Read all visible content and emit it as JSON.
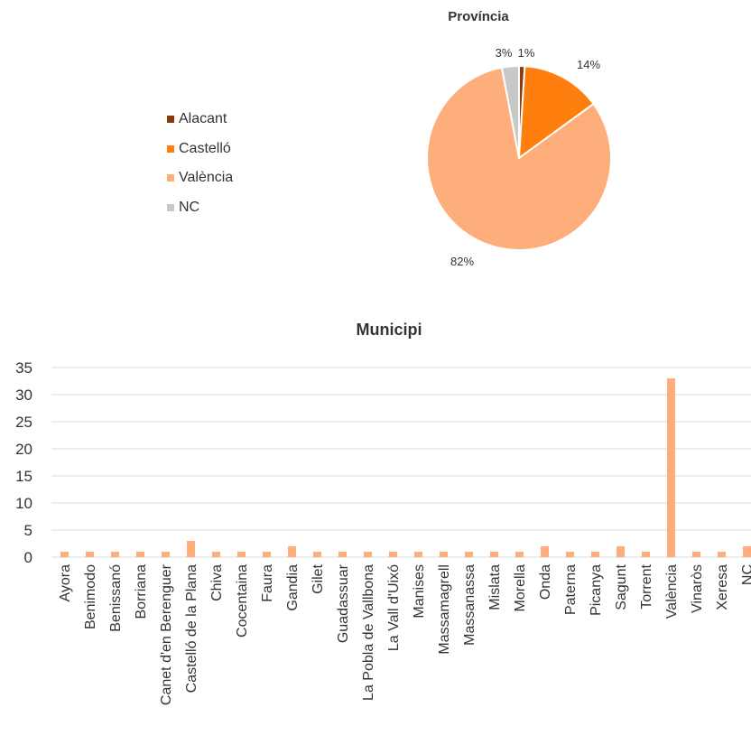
{
  "chart_data": [
    {
      "type": "pie",
      "title": "Província",
      "categories": [
        "Alacant",
        "Castelló",
        "València",
        "NC"
      ],
      "values": [
        1,
        14,
        82,
        3
      ],
      "labels": [
        "1%",
        "14%",
        "82%",
        "3%"
      ],
      "colors": [
        "#8B3A0B",
        "#FF7F0E",
        "#FDAE7B",
        "#C8C8C8"
      ],
      "legend_position": "left"
    },
    {
      "type": "bar",
      "title": "Municipi",
      "categories": [
        "Ayora",
        "Benimodo",
        "Benissanó",
        "Borriana",
        "Canet d'en Berenguer",
        "Castelló de la Plana",
        "Chiva",
        "Cocentaina",
        "Faura",
        "Gandia",
        "Gilet",
        "Guadassuar",
        "La Pobla de Vallbona",
        "La Vall d'Uixó",
        "Manises",
        "Massamagrell",
        "Massanassa",
        "Mislata",
        "Morella",
        "Onda",
        "Paterna",
        "Picanya",
        "Sagunt",
        "Torrent",
        "València",
        "Vinaròs",
        "Xeresa",
        "NC"
      ],
      "values": [
        1,
        1,
        1,
        1,
        1,
        3,
        1,
        1,
        1,
        2,
        1,
        1,
        1,
        1,
        1,
        1,
        1,
        1,
        1,
        2,
        1,
        1,
        2,
        1,
        33,
        1,
        1,
        2
      ],
      "ylim": [
        0,
        35
      ],
      "yticks": [
        0,
        5,
        10,
        15,
        20,
        25,
        30,
        35
      ],
      "grid": true,
      "color": "#FDAE7B"
    }
  ]
}
